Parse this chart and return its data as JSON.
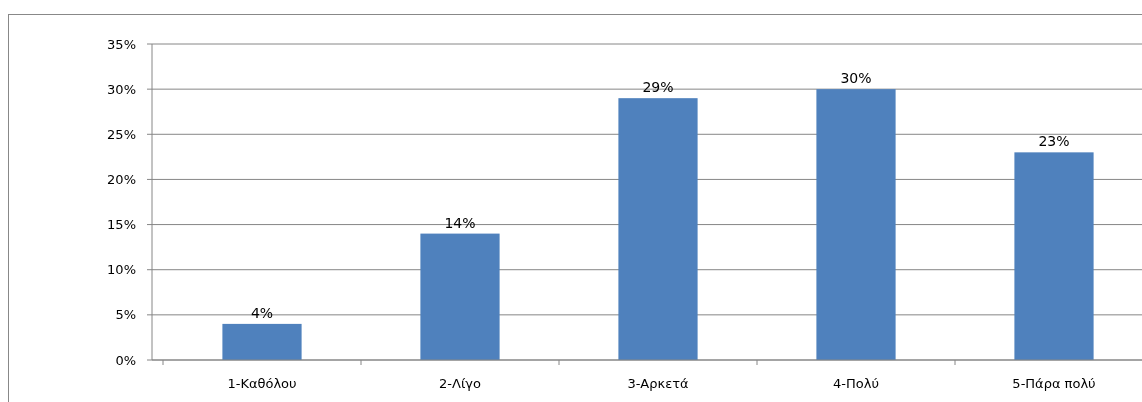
{
  "chart_data": {
    "type": "bar",
    "categories": [
      "1-Καθόλου",
      "2-Λίγο",
      "3-Αρκετά",
      "4-Πολύ",
      "5-Πάρα πολύ"
    ],
    "values": [
      4,
      14,
      29,
      30,
      23
    ],
    "value_labels": [
      "4%",
      "14%",
      "29%",
      "30%",
      "23%"
    ],
    "color": "#4f81bd",
    "grid": "y",
    "ylim": [
      0,
      35
    ],
    "yticks": [
      {
        "value": 0,
        "label": "0%"
      },
      {
        "value": 5,
        "label": "5%"
      },
      {
        "value": 10,
        "label": "10%"
      },
      {
        "value": 15,
        "label": "15%"
      },
      {
        "value": 20,
        "label": "20%"
      },
      {
        "value": 25,
        "label": "25%"
      },
      {
        "value": 30,
        "label": "30%"
      },
      {
        "value": 35,
        "label": "35%"
      }
    ]
  }
}
